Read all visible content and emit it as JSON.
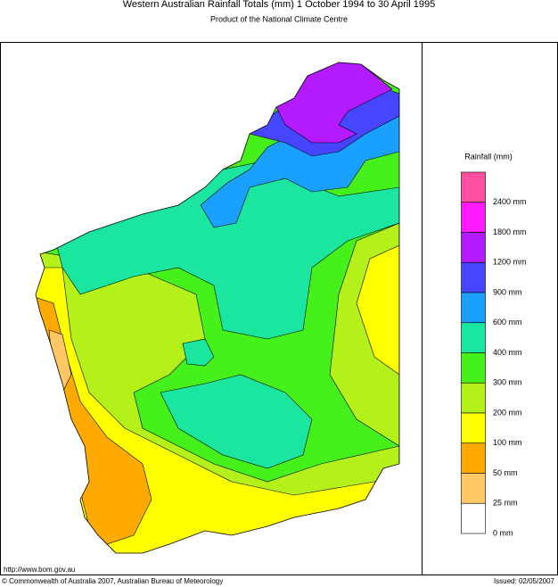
{
  "header": {
    "title": "Western Australian Rainfall Totals (mm) 1 October 1994 to 30 April 1995",
    "subtitle": "Product of the National Climate Centre"
  },
  "legend": {
    "title": "Rainfall (mm)",
    "items": [
      {
        "label": "2400 mm",
        "color": "#ff4fa0"
      },
      {
        "label": "1800 mm",
        "color": "#ff1aff"
      },
      {
        "label": "1200 mm",
        "color": "#b41aff"
      },
      {
        "label": "900 mm",
        "color": "#4646ff"
      },
      {
        "label": "600 mm",
        "color": "#1aa0ff"
      },
      {
        "label": "400 mm",
        "color": "#1ae6a0"
      },
      {
        "label": "300 mm",
        "color": "#46f01a"
      },
      {
        "label": "200 mm",
        "color": "#b4f01a"
      },
      {
        "label": "100 mm",
        "color": "#ffff00"
      },
      {
        "label": "50 mm",
        "color": "#ffaa00"
      },
      {
        "label": "25 mm",
        "color": "#ffc864"
      },
      {
        "label": "0 mm",
        "color": "#ffffff"
      }
    ]
  },
  "footer": {
    "url": "http://www.bom.gov.au",
    "copyright": "© Commonwealth of Australia 2007, Australian Bureau of Meteorology",
    "issued": "Issued: 02/05/2007"
  }
}
